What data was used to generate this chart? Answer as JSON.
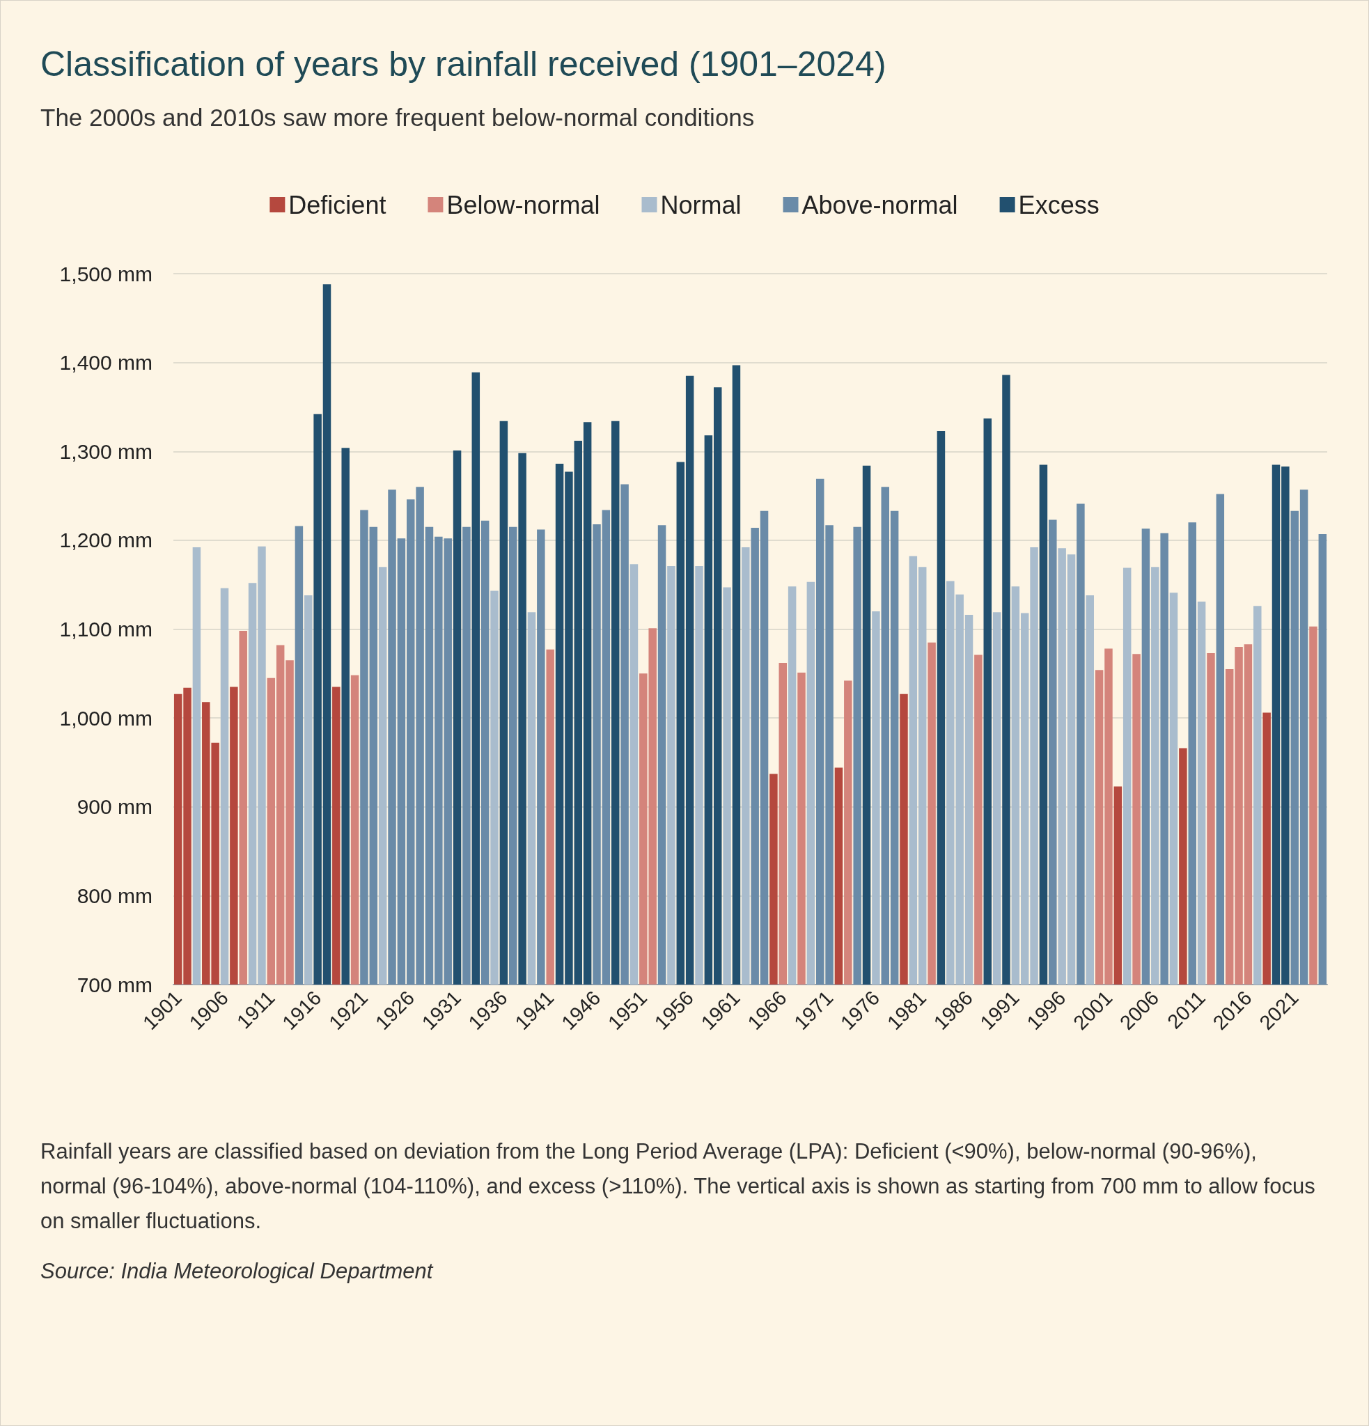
{
  "chart_data": {
    "type": "bar",
    "title": "Classification of years by rainfall received (1901–2024)",
    "subtitle": "The 2000s and 2010s saw more frequent below-normal conditions",
    "categories": [
      "1901",
      null,
      null,
      null,
      null,
      "1906",
      null,
      null,
      null,
      null,
      "1911",
      null,
      null,
      null,
      null,
      "1916",
      null,
      null,
      null,
      null,
      "1921",
      null,
      null,
      null,
      null,
      "1926",
      null,
      null,
      null,
      null,
      "1931",
      null,
      null,
      null,
      null,
      "1936",
      null,
      null,
      null,
      null,
      "1941",
      null,
      null,
      null,
      null,
      "1946",
      null,
      null,
      null,
      null,
      "1951",
      null,
      null,
      null,
      null,
      "1956",
      null,
      null,
      null,
      null,
      "1961",
      null,
      null,
      null,
      null,
      "1966",
      null,
      null,
      null,
      null,
      "1971",
      null,
      null,
      null,
      null,
      "1976",
      null,
      null,
      null,
      null,
      "1981",
      null,
      null,
      null,
      null,
      "1986",
      null,
      null,
      null,
      null,
      "1991",
      null,
      null,
      null,
      null,
      "1996",
      null,
      null,
      null,
      null,
      "2001",
      null,
      null,
      null,
      null,
      "2006",
      null,
      null,
      null,
      null,
      "2011",
      null,
      null,
      null,
      null,
      "2016",
      null,
      null,
      null,
      null,
      "2021",
      null,
      null,
      null
    ],
    "series": [
      {
        "name": "Deficient",
        "color": "#b5483e",
        "values": [
          1027,
          1034,
          null,
          1018,
          972,
          null,
          1035,
          null,
          null,
          null,
          null,
          null,
          null,
          null,
          null,
          null,
          null,
          1035,
          null,
          null,
          null,
          null,
          null,
          null,
          null,
          null,
          null,
          null,
          null,
          null,
          null,
          null,
          null,
          null,
          null,
          null,
          null,
          null,
          null,
          null,
          null,
          null,
          null,
          null,
          null,
          null,
          null,
          null,
          null,
          null,
          null,
          null,
          null,
          null,
          null,
          null,
          null,
          null,
          null,
          null,
          null,
          null,
          null,
          null,
          937,
          null,
          null,
          null,
          null,
          null,
          null,
          944,
          null,
          null,
          null,
          null,
          null,
          null,
          1027,
          null,
          null,
          null,
          null,
          null,
          null,
          null,
          null,
          null,
          null,
          null,
          null,
          null,
          null,
          null,
          null,
          null,
          null,
          null,
          null,
          null,
          null,
          923,
          null,
          null,
          null,
          null,
          null,
          null,
          966,
          null,
          null,
          null,
          null,
          null,
          null,
          null,
          null,
          1006,
          null,
          null,
          null,
          null,
          null,
          null
        ]
      },
      {
        "name": "Below-normal",
        "color": "#d4847b",
        "values": [
          null,
          null,
          null,
          null,
          null,
          null,
          null,
          1098,
          null,
          null,
          1045,
          1082,
          1065,
          null,
          null,
          null,
          null,
          null,
          null,
          1048,
          null,
          null,
          null,
          null,
          null,
          null,
          null,
          null,
          null,
          null,
          null,
          null,
          null,
          null,
          null,
          null,
          null,
          null,
          null,
          null,
          1077,
          null,
          null,
          null,
          null,
          null,
          null,
          null,
          null,
          null,
          1050,
          1101,
          null,
          null,
          null,
          null,
          null,
          null,
          null,
          null,
          null,
          null,
          null,
          null,
          null,
          1062,
          null,
          1051,
          null,
          null,
          null,
          null,
          1042,
          null,
          null,
          null,
          null,
          null,
          null,
          null,
          null,
          1085,
          null,
          null,
          null,
          null,
          1071,
          null,
          null,
          null,
          null,
          null,
          null,
          null,
          null,
          null,
          null,
          null,
          null,
          1054,
          1078,
          null,
          null,
          1072,
          null,
          null,
          null,
          null,
          null,
          null,
          null,
          1073,
          null,
          1055,
          1080,
          1083,
          null,
          null,
          null,
          null,
          null,
          null,
          1103,
          null
        ]
      },
      {
        "name": "Normal",
        "color": "#a9bccd",
        "values": [
          null,
          null,
          1192,
          null,
          null,
          1146,
          null,
          null,
          1152,
          1193,
          null,
          null,
          null,
          null,
          1138,
          null,
          null,
          null,
          null,
          null,
          null,
          null,
          1170,
          null,
          null,
          null,
          null,
          null,
          null,
          null,
          null,
          null,
          null,
          null,
          1143,
          null,
          null,
          null,
          1119,
          null,
          null,
          null,
          null,
          null,
          null,
          null,
          null,
          null,
          null,
          1173,
          null,
          null,
          null,
          1171,
          null,
          null,
          1171,
          null,
          null,
          1147,
          null,
          1192,
          null,
          null,
          null,
          null,
          1148,
          null,
          1153,
          null,
          null,
          null,
          null,
          null,
          null,
          1120,
          null,
          null,
          null,
          1182,
          1170,
          null,
          null,
          1154,
          1139,
          1116,
          null,
          null,
          1119,
          null,
          1148,
          1118,
          1192,
          null,
          null,
          1191,
          1184,
          null,
          1138,
          null,
          null,
          null,
          1169,
          null,
          null,
          1170,
          null,
          1141,
          null,
          null,
          1131,
          null,
          null,
          null,
          null,
          null,
          1126,
          null,
          null,
          null,
          null,
          null,
          null,
          null
        ]
      },
      {
        "name": "Above-normal",
        "color": "#6a8ba8",
        "values": [
          null,
          null,
          null,
          null,
          null,
          null,
          null,
          null,
          null,
          null,
          null,
          null,
          null,
          1216,
          null,
          null,
          null,
          null,
          null,
          null,
          1234,
          1215,
          null,
          1257,
          1202,
          1246,
          1260,
          1215,
          1204,
          1202,
          null,
          1215,
          null,
          1222,
          null,
          null,
          1215,
          null,
          null,
          1212,
          null,
          null,
          null,
          null,
          null,
          1218,
          1234,
          null,
          1263,
          null,
          null,
          null,
          1217,
          null,
          null,
          null,
          null,
          null,
          null,
          null,
          null,
          null,
          1214,
          1233,
          null,
          null,
          null,
          null,
          null,
          1269,
          1217,
          null,
          null,
          1215,
          null,
          null,
          1260,
          1233,
          null,
          null,
          null,
          null,
          null,
          null,
          null,
          null,
          null,
          null,
          null,
          null,
          null,
          null,
          null,
          null,
          1223,
          null,
          null,
          1241,
          null,
          null,
          null,
          null,
          null,
          null,
          1213,
          null,
          1208,
          null,
          null,
          1220,
          null,
          null,
          1252,
          null,
          null,
          null,
          null,
          null,
          null,
          null,
          1233,
          1257,
          null,
          1207
        ]
      },
      {
        "name": "Excess",
        "color": "#22506f",
        "values": [
          null,
          null,
          null,
          null,
          null,
          null,
          null,
          null,
          null,
          null,
          null,
          null,
          null,
          null,
          null,
          1342,
          1488,
          null,
          1304,
          null,
          null,
          null,
          null,
          null,
          null,
          null,
          null,
          null,
          null,
          null,
          1301,
          null,
          1389,
          null,
          null,
          1334,
          null,
          1298,
          null,
          null,
          null,
          1286,
          1277,
          1312,
          1333,
          null,
          null,
          1334,
          null,
          null,
          null,
          null,
          null,
          null,
          1288,
          1385,
          null,
          1318,
          1372,
          null,
          1397,
          null,
          null,
          null,
          null,
          null,
          null,
          null,
          null,
          null,
          null,
          null,
          null,
          null,
          1284,
          null,
          null,
          null,
          null,
          null,
          null,
          null,
          1323,
          null,
          null,
          null,
          null,
          1337,
          null,
          1386,
          null,
          null,
          null,
          1285,
          null,
          null,
          null,
          null,
          null,
          null,
          null,
          null,
          null,
          null,
          null,
          null,
          null,
          null,
          null,
          null,
          null,
          null,
          null,
          null,
          null,
          null,
          null,
          null,
          1285,
          1283,
          null,
          null,
          null,
          null
        ]
      }
    ],
    "ylim": [
      700,
      1500
    ],
    "yticks": [
      {
        "value": 700,
        "label": "700 mm"
      },
      {
        "value": 800,
        "label": "800 mm"
      },
      {
        "value": 900,
        "label": "900 mm"
      },
      {
        "value": 1000,
        "label": "1,000 mm"
      },
      {
        "value": 1100,
        "label": "1,100 mm"
      },
      {
        "value": 1200,
        "label": "1,200 mm"
      },
      {
        "value": 1300,
        "label": "1,300 mm"
      },
      {
        "value": 1400,
        "label": "1,400 mm"
      },
      {
        "value": 1500,
        "label": "1,500 mm"
      }
    ],
    "grid": "y",
    "legend": "top",
    "annotations": [
      "Rainfall years are classified based on deviation from the Long Period Average (LPA): Deficient (<90%), below-normal (90-96%), normal (96-104%), above-normal (104-110%), and excess (>110%). The vertical axis is shown as starting from 700 mm to allow focus on smaller fluctuations.",
      "Source: India Meteorological Department"
    ]
  }
}
